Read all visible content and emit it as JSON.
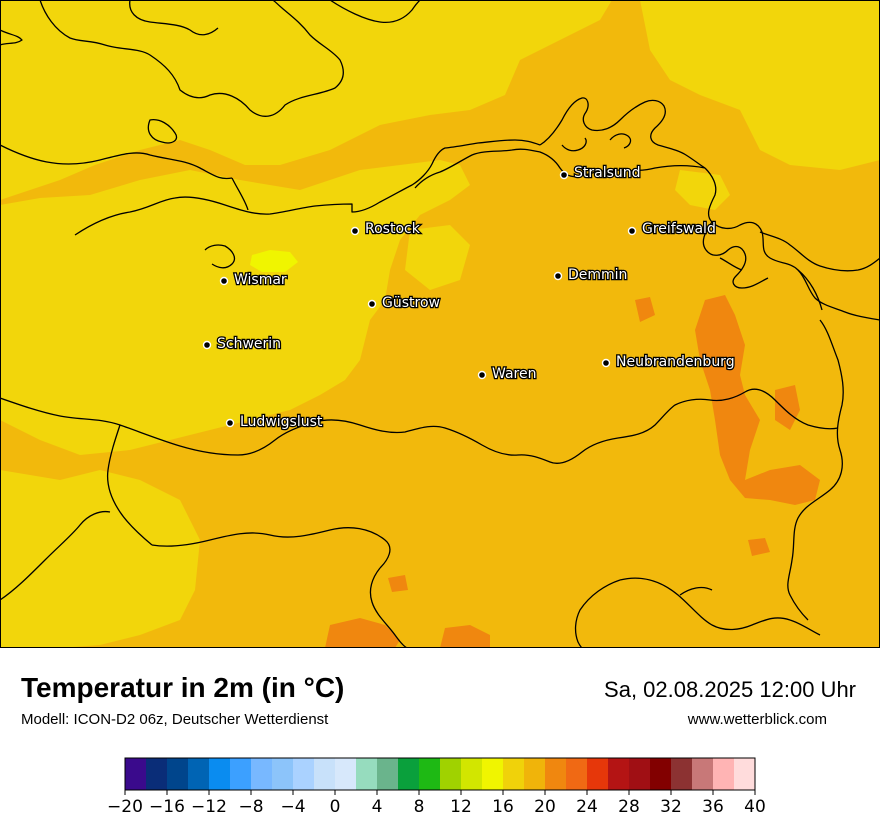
{
  "title": "Temperatur in 2m (in °C)",
  "subtitle": "Modell: ICON-D2 06z, Deutscher Wetterdienst",
  "datetime": "Sa, 02.08.2025 12:00 Uhr",
  "website": "www.wetterblick.com",
  "cities": [
    {
      "id": "stralsund",
      "name": "Stralsund"
    },
    {
      "id": "rostock",
      "name": "Rostock"
    },
    {
      "id": "greifswald",
      "name": "Greifswald"
    },
    {
      "id": "wismar",
      "name": "Wismar"
    },
    {
      "id": "demmin",
      "name": "Demmin"
    },
    {
      "id": "guestrow",
      "name": "Güstrow"
    },
    {
      "id": "schwerin",
      "name": "Schwerin"
    },
    {
      "id": "neubrandenburg",
      "name": "Neubrandenburg"
    },
    {
      "id": "waren",
      "name": "Waren"
    },
    {
      "id": "ludwigslust",
      "name": "Ludwigslust"
    }
  ],
  "legend": {
    "min": -20,
    "max": 40,
    "step": 2,
    "tick_values": [
      -20,
      -16,
      -12,
      -8,
      -4,
      0,
      4,
      8,
      12,
      16,
      20,
      24,
      28,
      32,
      36,
      40
    ],
    "tick_labels": [
      "−20",
      "−16",
      "−12",
      "−8",
      "−4",
      "0",
      "4",
      "8",
      "12",
      "16",
      "20",
      "24",
      "28",
      "32",
      "36",
      "40"
    ],
    "colors": [
      "#3a0a8c",
      "#0a2d78",
      "#00458c",
      "#0064b4",
      "#0a8cf0",
      "#3ca0ff",
      "#78b8ff",
      "#8cc4fa",
      "#aad2ff",
      "#c8e1fa",
      "#d7e8fb",
      "#96dcbe",
      "#6ab48c",
      "#0aa03c",
      "#1eb914",
      "#a0d200",
      "#d2e600",
      "#f0f500",
      "#f0d20a",
      "#f0b40a",
      "#f0870f",
      "#f06914",
      "#e6370a",
      "#b41414",
      "#a00f14",
      "#820000",
      "#8c3232",
      "#c87878",
      "#ffb4b4",
      "#ffdcdc"
    ]
  },
  "field_colors": {
    "warm": "#f2b90c",
    "mild": "#f2d60b",
    "hot": "#f0870f",
    "hotspot": "#f0f500"
  }
}
